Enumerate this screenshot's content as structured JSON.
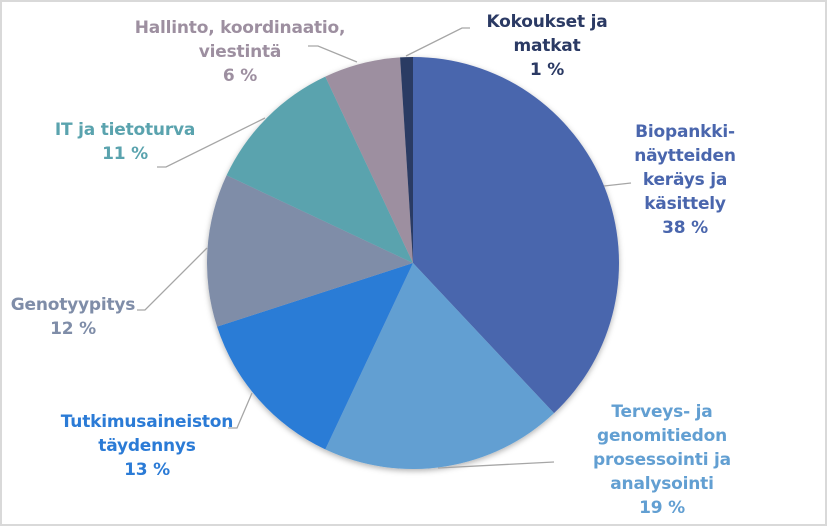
{
  "chart_data": {
    "type": "pie",
    "title": "",
    "start_angle_deg": 0,
    "direction": "clockwise",
    "center": [
      413,
      263
    ],
    "radius": 206,
    "slices": [
      {
        "label": "Biopankki-näytteiden keräys ja käsittely",
        "value": 38,
        "color": "#4a66ad",
        "lines": [
          "Biopankki-",
          "näytteiden",
          "keräys ja",
          "käsittely"
        ]
      },
      {
        "label": "Terveys- ja genomitiedon prosessointi ja analysointi",
        "value": 19,
        "color": "#629fd2",
        "lines": [
          "Terveys- ja",
          "genomitiedon",
          "prosessointi ja",
          "analysointi"
        ]
      },
      {
        "label": "Tutkimusaineiston täydennys",
        "value": 13,
        "color": "#2b7bd6",
        "lines": [
          "Tutkimusaineiston",
          "täydennys"
        ]
      },
      {
        "label": "Genotyypitys",
        "value": 12,
        "color": "#7f8da8",
        "lines": [
          "Genotyypitys"
        ]
      },
      {
        "label": "IT ja tietoturva",
        "value": 11,
        "color": "#5aa3ae",
        "lines": [
          "IT ja tietoturva"
        ]
      },
      {
        "label": "Hallinto, koordinaatio, viestintä",
        "value": 6,
        "color": "#9d8fa0",
        "lines": [
          "Hallinto, koordinaatio,",
          "viestintä"
        ]
      },
      {
        "label": "Kokoukset ja matkat",
        "value": 1,
        "color": "#2b3a64",
        "lines": [
          "Kokoukset ja",
          "matkat"
        ]
      }
    ],
    "value_suffix": " %",
    "legend": "none",
    "data_labels": "category name and percentage with leader lines"
  },
  "labels": {
    "s0": {
      "l1": "Biopankki-",
      "l2": "näytteiden",
      "l3": "keräys ja",
      "l4": "käsittely",
      "pct": "38 %"
    },
    "s1": {
      "l1": "Terveys- ja",
      "l2": "genomitiedon",
      "l3": "prosessointi ja",
      "l4": "analysointi",
      "pct": "19 %"
    },
    "s2": {
      "l1": "Tutkimusaineiston",
      "l2": "täydennys",
      "pct": "13 %"
    },
    "s3": {
      "l1": "Genotyypitys",
      "pct": "12 %"
    },
    "s4": {
      "l1": "IT ja tietoturva",
      "pct": "11 %"
    },
    "s5": {
      "l1": "Hallinto, koordinaatio,",
      "l2": "viestintä",
      "pct": "6 %"
    },
    "s6": {
      "l1": "Kokoukset ja",
      "l2": "matkat",
      "pct": "1 %"
    }
  },
  "colors": {
    "border": "#d9d9d9",
    "leader_line": "#a6a6a6"
  }
}
